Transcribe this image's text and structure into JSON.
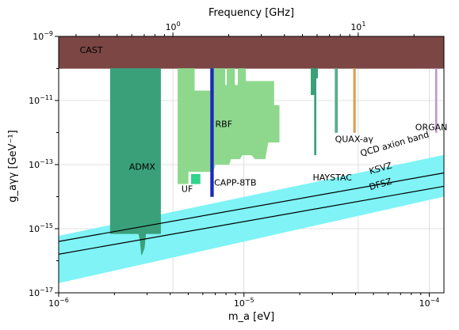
{
  "chart_data": {
    "type": "area",
    "xlabel": "m_a [eV]",
    "ylabel": "g_aγγ [GeV⁻¹]",
    "top_xlabel": "Frequency [GHz]",
    "xscale": "log",
    "yscale": "log",
    "xlim": [
      1e-06,
      0.00012
    ],
    "ylim": [
      1e-17,
      1e-09
    ],
    "x_ticks": [
      {
        "value": 1e-06,
        "label": "10^-6"
      },
      {
        "value": 1e-05,
        "label": "10^-5"
      },
      {
        "value": 0.0001,
        "label": "10^-4"
      }
    ],
    "y_ticks": [
      {
        "value": 1e-17,
        "label": "10^-17"
      },
      {
        "value": 1e-15,
        "label": "10^-15"
      },
      {
        "value": 1e-13,
        "label": "10^-13"
      },
      {
        "value": 1e-11,
        "label": "10^-11"
      },
      {
        "value": 1e-09,
        "label": "10^-9"
      }
    ],
    "top_ticks": [
      {
        "value": 1,
        "label": "10^0"
      },
      {
        "value": 10,
        "label": "10^1"
      }
    ],
    "grid": true,
    "regions": [
      {
        "name": "CAST",
        "color": "#7b4644",
        "points": [
          [
            1e-06,
            1e-10
          ],
          [
            0.00012,
            1e-10
          ],
          [
            0.00012,
            1e-09
          ],
          [
            1e-06,
            1e-09
          ]
        ]
      },
      {
        "name": "ADMX",
        "color": "#3aa07a",
        "points": [
          [
            1.9e-06,
            1e-10
          ],
          [
            3.55e-06,
            1e-10
          ],
          [
            3.55e-06,
            7e-16
          ],
          [
            2.95e-06,
            7e-16
          ],
          [
            2.9e-06,
            2.5e-16
          ],
          [
            2.8e-06,
            1.5e-16
          ],
          [
            2.75e-06,
            4.5e-16
          ],
          [
            2.7e-06,
            7e-16
          ],
          [
            1.9e-06,
            7e-16
          ]
        ]
      },
      {
        "name": "RBF",
        "color": "#8ed88e",
        "points": [
          [
            4.4e-06,
            1e-10
          ],
          [
            5.4e-06,
            1e-10
          ],
          [
            5.4e-06,
            2e-11
          ],
          [
            6.6e-06,
            2e-11
          ],
          [
            6.6e-06,
            1e-10
          ],
          [
            7.9e-06,
            1e-10
          ],
          [
            7.9e-06,
            3e-11
          ],
          [
            8.1e-06,
            3e-11
          ],
          [
            8.1e-06,
            1e-10
          ],
          [
            8.9e-06,
            1e-10
          ],
          [
            8.9e-06,
            3e-11
          ],
          [
            9.3e-06,
            3e-11
          ],
          [
            9.3e-06,
            1e-10
          ],
          [
            1.02e-05,
            1e-10
          ],
          [
            1.02e-05,
            4e-11
          ],
          [
            1.45e-05,
            4e-11
          ],
          [
            1.45e-05,
            7e-12
          ],
          [
            1.55e-05,
            7e-12
          ],
          [
            1.55e-05,
            5e-13
          ],
          [
            1.35e-05,
            5e-13
          ],
          [
            1.3e-05,
            1.5e-13
          ],
          [
            1.15e-05,
            1.5e-13
          ],
          [
            1.1e-05,
            2e-13
          ],
          [
            9.8e-06,
            2e-13
          ],
          [
            9.5e-06,
            1.5e-13
          ],
          [
            8.5e-06,
            1.5e-13
          ],
          [
            8.3e-06,
            1e-13
          ],
          [
            7e-06,
            1e-13
          ],
          [
            6.8e-06,
            6e-14
          ],
          [
            6.5e-06,
            6e-14
          ],
          [
            5e-06,
            6e-14
          ],
          [
            5e-06,
            2.5e-14
          ],
          [
            4.4e-06,
            2.5e-14
          ]
        ]
      },
      {
        "name": "UF",
        "color": "#2fd38c",
        "points": [
          [
            5.2e-06,
            5e-14
          ],
          [
            5.8e-06,
            5e-14
          ],
          [
            5.8e-06,
            2.5e-14
          ],
          [
            5.2e-06,
            2.5e-14
          ]
        ]
      },
      {
        "name": "HAYSTAC",
        "color": "#3aa07a",
        "points": [
          [
            2.3e-05,
            1e-10
          ],
          [
            2.5e-05,
            1e-10
          ],
          [
            2.5e-05,
            5e-11
          ],
          [
            2.45e-05,
            5e-11
          ],
          [
            2.45e-05,
            2e-13
          ],
          [
            2.4e-05,
            2e-13
          ],
          [
            2.4e-05,
            1.5e-11
          ],
          [
            2.3e-05,
            1.5e-11
          ]
        ]
      },
      {
        "name": "QUAX-aγ",
        "color": "#5aae8a",
        "points": [
          [
            3.1e-05,
            1e-10
          ],
          [
            3.2e-05,
            1e-10
          ],
          [
            3.2e-05,
            1e-12
          ],
          [
            3.1e-05,
            1e-12
          ]
        ]
      },
      {
        "name": "QUAX-aγ",
        "color": "#d9a05a",
        "points": [
          [
            3.9e-05,
            1e-10
          ],
          [
            4e-05,
            1e-10
          ],
          [
            4e-05,
            1e-12
          ],
          [
            3.9e-05,
            1e-12
          ]
        ]
      },
      {
        "name": "ORGAN",
        "color": "#c090d8",
        "points": [
          [
            0.000108,
            1e-10
          ],
          [
            0.00011,
            1e-10
          ],
          [
            0.00011,
            1e-12
          ],
          [
            0.000108,
            1e-12
          ]
        ]
      },
      {
        "name": "CAPP-8TB",
        "color": "#1a2bb8",
        "points": [
          [
            6.6e-06,
            1e-10
          ],
          [
            6.85e-06,
            1e-10
          ],
          [
            6.85e-06,
            1e-14
          ],
          [
            6.6e-06,
            1e-14
          ]
        ]
      }
    ],
    "band": {
      "name": "QCD axion band",
      "color": "#7ff3f5",
      "upper": [
        [
          1e-06,
          6e-16
        ],
        [
          0.00012,
          2e-13
        ]
      ],
      "lower": [
        [
          1e-06,
          2e-17
        ],
        [
          0.00012,
          1e-14
        ]
      ]
    },
    "lines": [
      {
        "name": "KSVZ",
        "points": [
          [
            1e-06,
            4e-16
          ],
          [
            0.00012,
            5.5e-14
          ]
        ]
      },
      {
        "name": "DFSZ",
        "points": [
          [
            1e-06,
            1.6e-16
          ],
          [
            0.00012,
            2.1e-14
          ]
        ]
      }
    ],
    "labels": [
      {
        "text": "CAST",
        "x": 1.3e-06,
        "y": 3e-10
      },
      {
        "text": "ADMX",
        "x": 2.4e-06,
        "y": 7e-14
      },
      {
        "text": "RBF",
        "x": 7e-06,
        "y": 1.5e-12
      },
      {
        "text": "UF",
        "x": 4.6e-06,
        "y": 1.4e-14
      },
      {
        "text": "CAPP-8TB",
        "x": 6.9e-06,
        "y": 2.2e-14,
        "color": "#1a2bb8"
      },
      {
        "text": "HAYSTAC",
        "x": 2.35e-05,
        "y": 3.2e-14
      },
      {
        "text": "QUAX-aγ",
        "x": 3.1e-05,
        "y": 5e-13
      },
      {
        "text": "ORGAN",
        "x": 8.4e-05,
        "y": 1.2e-12
      },
      {
        "text": "QCD axion band",
        "x": 4.3e-05,
        "y": 1.8e-13,
        "rotate": -16
      },
      {
        "text": "KSVZ",
        "x": 4.8e-05,
        "y": 5e-14,
        "rotate": -16
      },
      {
        "text": "DFSZ",
        "x": 4.8e-05,
        "y": 1.6e-14,
        "rotate": -16
      }
    ]
  }
}
